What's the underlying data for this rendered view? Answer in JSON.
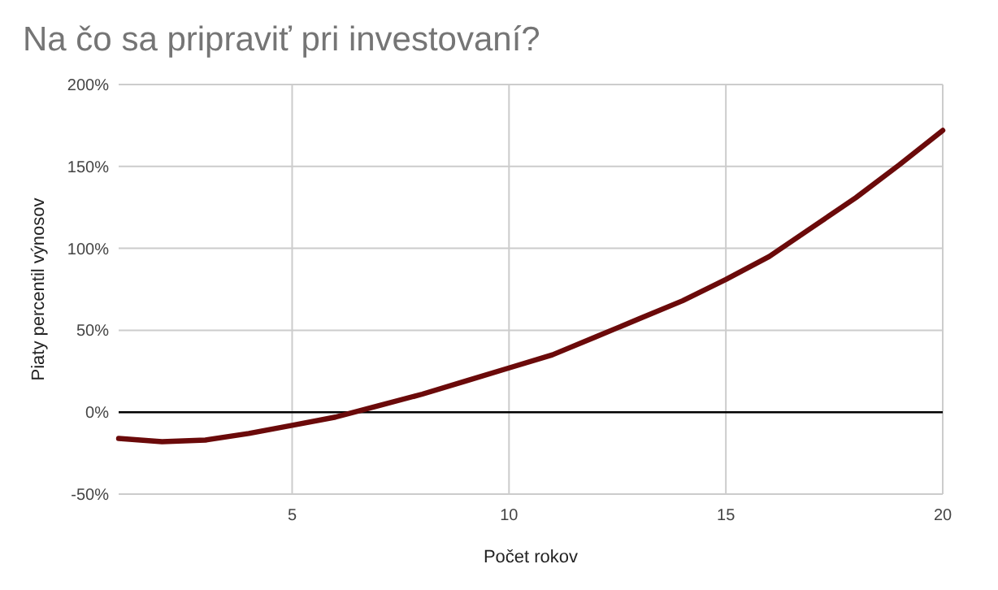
{
  "chart_data": {
    "type": "line",
    "title": "Na čo sa pripraviť pri investovaní?",
    "xlabel": "Počet rokov",
    "ylabel": "Piaty percentil výnosov",
    "x": [
      1,
      2,
      3,
      4,
      5,
      6,
      7,
      8,
      9,
      10,
      11,
      12,
      13,
      14,
      15,
      16,
      17,
      18,
      19,
      20
    ],
    "series": [
      {
        "color": "#6b0a0a",
        "values": [
          -16,
          -18,
          -17,
          -13,
          -8,
          -3,
          4,
          11,
          19,
          27,
          35,
          46,
          57,
          68,
          81,
          95,
          113,
          131,
          151,
          172
        ]
      }
    ],
    "xlim": [
      1,
      20
    ],
    "xticks": [
      5,
      10,
      15,
      20
    ],
    "ylim": [
      -50,
      200
    ],
    "yticks": [
      {
        "value": -50,
        "label": "-50%"
      },
      {
        "value": 0,
        "label": "0%"
      },
      {
        "value": 50,
        "label": "50%"
      },
      {
        "value": 100,
        "label": "100%"
      },
      {
        "value": 150,
        "label": "150%"
      },
      {
        "value": 200,
        "label": "200%"
      }
    ],
    "grid": true,
    "marker": "none",
    "line_style": "solid",
    "ref_lines": [
      {
        "axis": "y",
        "value": 0,
        "color": "#000000"
      }
    ]
  }
}
